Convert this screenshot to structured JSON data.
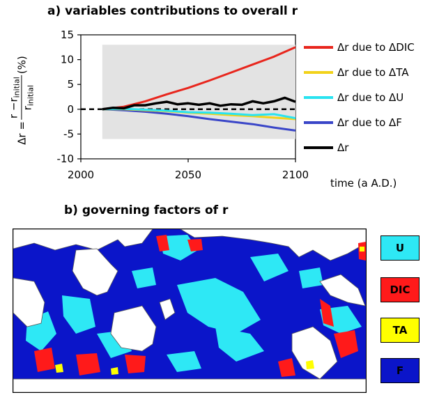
{
  "panel_a_title": "a) variables contributions to overall r",
  "panel_b_title": "b) governing factors of r",
  "y_axis_label": {
    "lhs": "Δr =",
    "numerator": "r −r",
    "numerator_sub": "initial",
    "denominator": "r",
    "denominator_sub": "initial",
    "unit": "(%)"
  },
  "x_axis_label": "time (a A.D.)",
  "chart_data": {
    "type": "line",
    "title": "a) variables contributions to overall r",
    "xlabel": "time (a A.D.)",
    "ylabel": "Δr = (r − r_initial)/r_initial (%)",
    "xlim": [
      2000,
      2100
    ],
    "ylim": [
      -10,
      15
    ],
    "x_ticks": [
      "2000",
      "2050",
      "2100"
    ],
    "y_ticks": [
      "15",
      "10",
      "5",
      "0",
      "-5",
      "-10"
    ],
    "legend_position": "right",
    "series": [
      {
        "name": "Δr due to ΔDIC",
        "color": "#e8261d",
        "x": [
          2010,
          2020,
          2030,
          2040,
          2050,
          2060,
          2070,
          2080,
          2090,
          2100
        ],
        "values": [
          0,
          0.5,
          1.6,
          3.0,
          4.3,
          5.8,
          7.4,
          9.0,
          10.6,
          12.5
        ]
      },
      {
        "name": "Δr due to ΔTA",
        "color": "#f2d21a",
        "x": [
          2010,
          2020,
          2030,
          2040,
          2050,
          2060,
          2070,
          2080,
          2090,
          2100
        ],
        "values": [
          0,
          0.0,
          -0.2,
          -0.4,
          -0.7,
          -0.9,
          -1.2,
          -1.4,
          -1.7,
          -2.0
        ]
      },
      {
        "name": "Δr due to ΔU",
        "color": "#29e3f0",
        "x": [
          2010,
          2020,
          2030,
          2040,
          2050,
          2060,
          2070,
          2080,
          2090,
          2100
        ],
        "values": [
          0,
          0.1,
          -0.1,
          -0.3,
          -0.6,
          -0.7,
          -0.9,
          -1.2,
          -1.0,
          -1.8
        ]
      },
      {
        "name": "Δr due to ΔF",
        "color": "#3a46c8",
        "x": [
          2010,
          2020,
          2030,
          2040,
          2050,
          2060,
          2070,
          2080,
          2090,
          2100
        ],
        "values": [
          0,
          -0.2,
          -0.5,
          -0.9,
          -1.4,
          -2.0,
          -2.5,
          -3.0,
          -3.7,
          -4.3
        ]
      },
      {
        "name": "Δr",
        "color": "#000000",
        "x": [
          2010,
          2015,
          2020,
          2025,
          2030,
          2035,
          2040,
          2045,
          2050,
          2055,
          2060,
          2065,
          2070,
          2075,
          2080,
          2085,
          2090,
          2095,
          2100
        ],
        "values": [
          0,
          0.3,
          0.2,
          0.8,
          0.8,
          1.2,
          1.5,
          1.0,
          1.2,
          0.9,
          1.2,
          0.7,
          1.0,
          0.9,
          1.6,
          1.2,
          1.6,
          2.3,
          1.5
        ]
      }
    ],
    "reference_line": {
      "y": 0,
      "style": "dashed"
    }
  },
  "factor_legend": [
    {
      "label": "U",
      "color": "#2ee8f5"
    },
    {
      "label": "DIC",
      "color": "#ff1a1a"
    },
    {
      "label": "TA",
      "color": "#ffff00"
    },
    {
      "label": "F",
      "color": "#0b15c9"
    }
  ],
  "colors": {
    "plot_background": "#e3e3e3",
    "map_ocean": "#0b15c9",
    "map_land": "#ffffff"
  }
}
